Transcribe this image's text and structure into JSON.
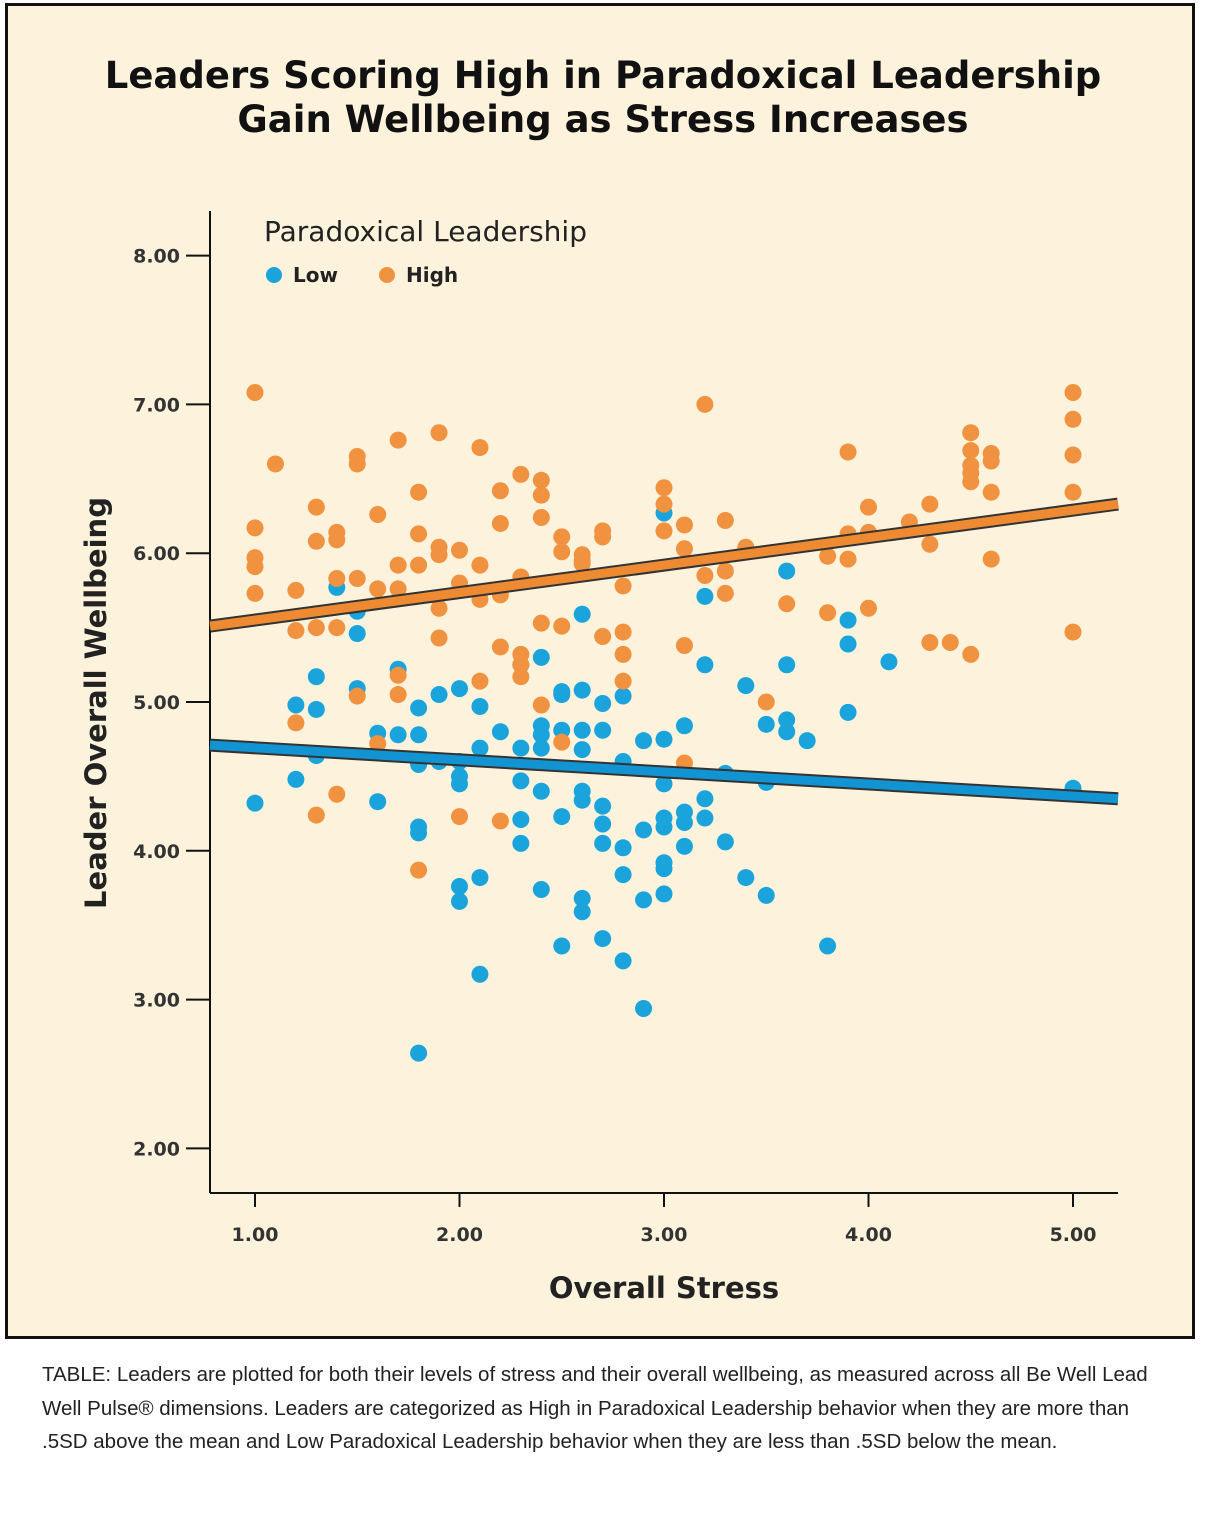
{
  "chart_data": {
    "type": "scatter",
    "title_lines": [
      "Leaders Scoring High in Paradoxical Leadership",
      "Gain Wellbeing as Stress Increases"
    ],
    "xlabel": "Overall Stress",
    "ylabel": "Leader Overall Wellbeing",
    "xlim": [
      0.78,
      5.22
    ],
    "ylim": [
      1.7,
      8.3
    ],
    "x_ticks": [
      1,
      2,
      3,
      4,
      5
    ],
    "x_tick_labels": [
      "1.00",
      "2.00",
      "3.00",
      "4.00",
      "5.00"
    ],
    "y_ticks": [
      2,
      3,
      4,
      5,
      6,
      7,
      8
    ],
    "y_tick_labels": [
      "2.00",
      "3.00",
      "4.00",
      "5.00",
      "6.00",
      "7.00",
      "8.00"
    ],
    "grid": false,
    "legend": {
      "title": "Paradoxical Leadership",
      "placement": "top-left",
      "entries": [
        "Low",
        "High"
      ]
    },
    "colors": {
      "Low": "#1ba3dc",
      "High": "#f0923f",
      "low_line": "#1294d2",
      "high_line": "#ee8a32",
      "line_outline": "#333333"
    },
    "series": [
      {
        "name": "Low",
        "fit_line": {
          "start": [
            0.78,
            4.71
          ],
          "end": [
            5.22,
            4.35
          ]
        },
        "points": [
          [
            1.0,
            4.32
          ],
          [
            1.2,
            4.98
          ],
          [
            1.2,
            4.48
          ],
          [
            1.3,
            5.17
          ],
          [
            1.3,
            4.95
          ],
          [
            1.3,
            4.64
          ],
          [
            1.4,
            5.77
          ],
          [
            1.5,
            5.61
          ],
          [
            1.5,
            5.46
          ],
          [
            1.5,
            5.09
          ],
          [
            1.6,
            4.79
          ],
          [
            1.6,
            4.33
          ],
          [
            1.7,
            5.22
          ],
          [
            1.7,
            4.78
          ],
          [
            1.8,
            4.96
          ],
          [
            1.8,
            4.78
          ],
          [
            1.8,
            4.58
          ],
          [
            1.8,
            4.16
          ],
          [
            1.8,
            4.12
          ],
          [
            1.8,
            2.64
          ],
          [
            1.9,
            5.05
          ],
          [
            1.9,
            4.6
          ],
          [
            2.0,
            5.09
          ],
          [
            2.0,
            4.6
          ],
          [
            2.0,
            4.5
          ],
          [
            2.0,
            4.45
          ],
          [
            2.0,
            3.76
          ],
          [
            2.0,
            3.66
          ],
          [
            2.1,
            4.97
          ],
          [
            2.1,
            4.69
          ],
          [
            2.1,
            3.82
          ],
          [
            2.1,
            3.17
          ],
          [
            2.2,
            4.8
          ],
          [
            2.3,
            5.25
          ],
          [
            2.3,
            4.69
          ],
          [
            2.3,
            4.47
          ],
          [
            2.3,
            4.21
          ],
          [
            2.3,
            4.05
          ],
          [
            2.4,
            5.3
          ],
          [
            2.4,
            4.84
          ],
          [
            2.4,
            4.78
          ],
          [
            2.4,
            4.69
          ],
          [
            2.4,
            4.4
          ],
          [
            2.4,
            3.74
          ],
          [
            2.5,
            5.07
          ],
          [
            2.5,
            5.05
          ],
          [
            2.5,
            4.81
          ],
          [
            2.5,
            4.23
          ],
          [
            2.5,
            3.36
          ],
          [
            2.6,
            5.59
          ],
          [
            2.6,
            5.08
          ],
          [
            2.6,
            4.81
          ],
          [
            2.6,
            4.68
          ],
          [
            2.6,
            4.4
          ],
          [
            2.6,
            4.34
          ],
          [
            2.6,
            3.68
          ],
          [
            2.6,
            3.59
          ],
          [
            2.7,
            4.99
          ],
          [
            2.7,
            4.81
          ],
          [
            2.7,
            4.3
          ],
          [
            2.7,
            4.18
          ],
          [
            2.7,
            4.05
          ],
          [
            2.7,
            3.41
          ],
          [
            2.8,
            5.04
          ],
          [
            2.8,
            4.6
          ],
          [
            2.8,
            4.02
          ],
          [
            2.8,
            3.84
          ],
          [
            2.8,
            3.26
          ],
          [
            2.9,
            4.74
          ],
          [
            2.9,
            4.14
          ],
          [
            2.9,
            3.67
          ],
          [
            2.9,
            2.94
          ],
          [
            3.0,
            6.27
          ],
          [
            3.0,
            4.75
          ],
          [
            3.0,
            4.45
          ],
          [
            3.0,
            4.22
          ],
          [
            3.0,
            4.16
          ],
          [
            3.0,
            3.92
          ],
          [
            3.0,
            3.88
          ],
          [
            3.0,
            3.71
          ],
          [
            3.1,
            4.84
          ],
          [
            3.1,
            4.26
          ],
          [
            3.1,
            4.19
          ],
          [
            3.1,
            4.03
          ],
          [
            3.2,
            5.71
          ],
          [
            3.2,
            5.25
          ],
          [
            3.2,
            4.35
          ],
          [
            3.2,
            4.22
          ],
          [
            3.3,
            4.52
          ],
          [
            3.3,
            4.06
          ],
          [
            3.4,
            5.11
          ],
          [
            3.4,
            3.82
          ],
          [
            3.5,
            4.85
          ],
          [
            3.5,
            4.46
          ],
          [
            3.5,
            3.7
          ],
          [
            3.6,
            5.88
          ],
          [
            3.6,
            5.25
          ],
          [
            3.6,
            4.88
          ],
          [
            3.6,
            4.8
          ],
          [
            3.7,
            4.74
          ],
          [
            3.8,
            3.36
          ],
          [
            3.9,
            5.55
          ],
          [
            3.9,
            5.39
          ],
          [
            3.9,
            4.93
          ],
          [
            4.1,
            5.27
          ],
          [
            5.0,
            4.42
          ]
        ]
      },
      {
        "name": "High",
        "fit_line": {
          "start": [
            0.78,
            5.51
          ],
          "end": [
            5.22,
            6.33
          ]
        },
        "points": [
          [
            1.0,
            7.08
          ],
          [
            1.0,
            6.17
          ],
          [
            1.0,
            5.97
          ],
          [
            1.0,
            5.91
          ],
          [
            1.0,
            5.73
          ],
          [
            1.1,
            6.6
          ],
          [
            1.2,
            5.75
          ],
          [
            1.2,
            5.48
          ],
          [
            1.2,
            4.86
          ],
          [
            1.3,
            6.31
          ],
          [
            1.3,
            6.08
          ],
          [
            1.3,
            5.5
          ],
          [
            1.3,
            4.24
          ],
          [
            1.4,
            6.14
          ],
          [
            1.4,
            6.09
          ],
          [
            1.4,
            5.83
          ],
          [
            1.4,
            5.5
          ],
          [
            1.4,
            4.38
          ],
          [
            1.5,
            6.65
          ],
          [
            1.5,
            6.6
          ],
          [
            1.5,
            5.83
          ],
          [
            1.5,
            5.04
          ],
          [
            1.6,
            6.26
          ],
          [
            1.6,
            5.76
          ],
          [
            1.6,
            4.72
          ],
          [
            1.7,
            6.76
          ],
          [
            1.7,
            5.92
          ],
          [
            1.7,
            5.76
          ],
          [
            1.7,
            5.18
          ],
          [
            1.7,
            5.05
          ],
          [
            1.8,
            6.41
          ],
          [
            1.8,
            6.13
          ],
          [
            1.8,
            5.92
          ],
          [
            1.8,
            3.87
          ],
          [
            1.9,
            6.81
          ],
          [
            1.9,
            6.04
          ],
          [
            1.9,
            5.99
          ],
          [
            1.9,
            5.63
          ],
          [
            1.9,
            5.43
          ],
          [
            2.0,
            6.02
          ],
          [
            2.0,
            5.8
          ],
          [
            2.0,
            4.23
          ],
          [
            2.1,
            6.71
          ],
          [
            2.1,
            5.92
          ],
          [
            2.1,
            5.69
          ],
          [
            2.1,
            5.14
          ],
          [
            2.2,
            6.42
          ],
          [
            2.2,
            6.2
          ],
          [
            2.2,
            5.72
          ],
          [
            2.2,
            5.37
          ],
          [
            2.2,
            4.2
          ],
          [
            2.3,
            6.53
          ],
          [
            2.3,
            5.84
          ],
          [
            2.3,
            5.32
          ],
          [
            2.3,
            5.25
          ],
          [
            2.3,
            5.17
          ],
          [
            2.4,
            6.49
          ],
          [
            2.4,
            6.39
          ],
          [
            2.4,
            6.24
          ],
          [
            2.4,
            5.53
          ],
          [
            2.4,
            4.98
          ],
          [
            2.5,
            6.11
          ],
          [
            2.5,
            6.01
          ],
          [
            2.5,
            5.51
          ],
          [
            2.5,
            4.73
          ],
          [
            2.6,
            5.99
          ],
          [
            2.6,
            5.95
          ],
          [
            2.6,
            5.93
          ],
          [
            2.7,
            6.15
          ],
          [
            2.7,
            6.11
          ],
          [
            2.7,
            5.44
          ],
          [
            2.8,
            5.78
          ],
          [
            2.8,
            5.47
          ],
          [
            2.8,
            5.32
          ],
          [
            2.8,
            5.14
          ],
          [
            3.0,
            6.44
          ],
          [
            3.0,
            6.33
          ],
          [
            3.0,
            6.15
          ],
          [
            3.1,
            6.19
          ],
          [
            3.1,
            6.03
          ],
          [
            3.1,
            5.38
          ],
          [
            3.1,
            4.59
          ],
          [
            3.2,
            7.0
          ],
          [
            3.2,
            5.85
          ],
          [
            3.3,
            6.22
          ],
          [
            3.3,
            5.88
          ],
          [
            3.3,
            5.73
          ],
          [
            3.4,
            6.04
          ],
          [
            3.5,
            5.0
          ],
          [
            3.6,
            5.66
          ],
          [
            3.8,
            5.98
          ],
          [
            3.8,
            5.6
          ],
          [
            3.9,
            6.68
          ],
          [
            3.9,
            6.13
          ],
          [
            3.9,
            5.96
          ],
          [
            4.0,
            6.31
          ],
          [
            4.0,
            6.14
          ],
          [
            4.0,
            5.63
          ],
          [
            4.2,
            6.21
          ],
          [
            4.3,
            6.33
          ],
          [
            4.3,
            6.06
          ],
          [
            4.3,
            5.4
          ],
          [
            4.4,
            5.4
          ],
          [
            4.5,
            6.81
          ],
          [
            4.5,
            6.69
          ],
          [
            4.5,
            6.59
          ],
          [
            4.5,
            6.54
          ],
          [
            4.5,
            6.48
          ],
          [
            4.5,
            5.32
          ],
          [
            4.6,
            6.67
          ],
          [
            4.6,
            6.62
          ],
          [
            4.6,
            6.41
          ],
          [
            4.6,
            5.96
          ],
          [
            5.0,
            7.08
          ],
          [
            5.0,
            6.9
          ],
          [
            5.0,
            6.66
          ],
          [
            5.0,
            6.41
          ],
          [
            5.0,
            5.47
          ]
        ]
      }
    ]
  },
  "caption": "TABLE: Leaders are plotted for both their levels of stress and their overall wellbeing, as measured across all Be Well Lead Well Pulse® dimensions. Leaders are categorized as High in Paradoxical Leadership behavior when they are more than .5SD above the mean and Low Paradoxical Leadership behavior when they are less than .5SD below the mean."
}
